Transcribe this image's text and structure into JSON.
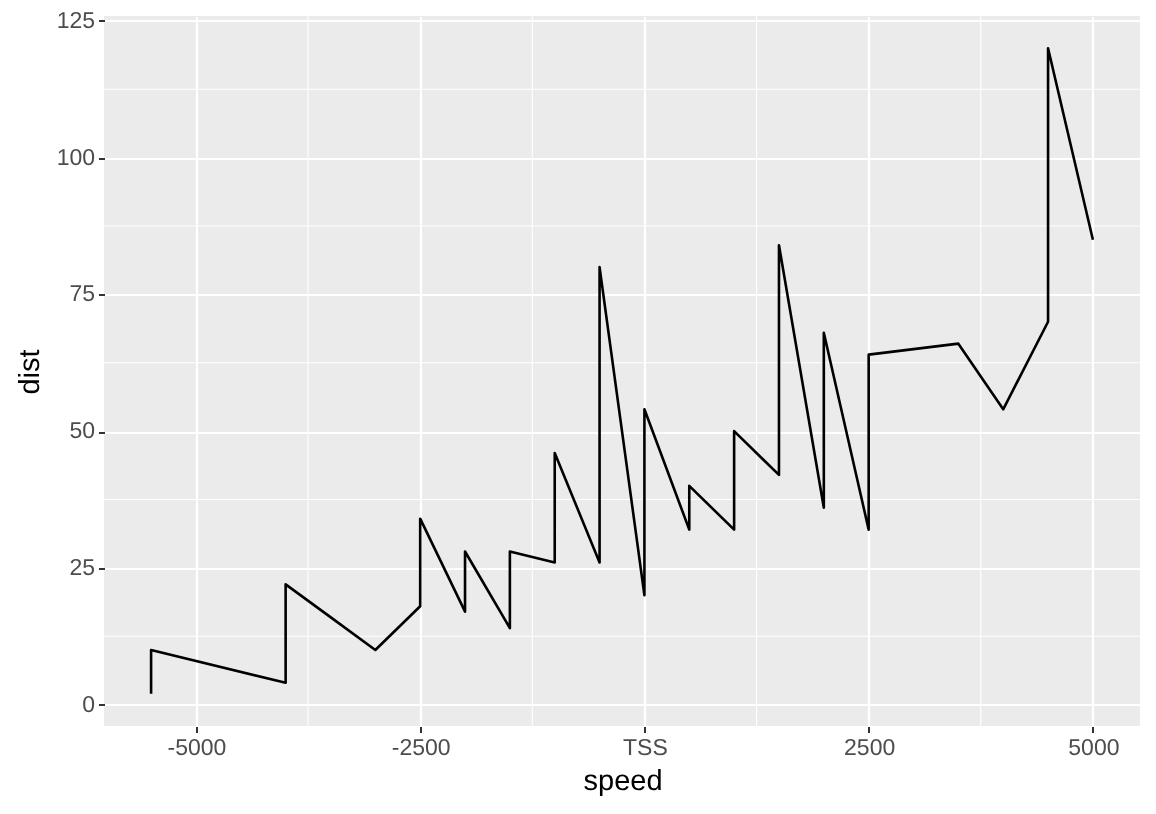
{
  "chart_data": {
    "type": "line",
    "xlabel": "speed",
    "ylabel": "dist",
    "x": [
      -5500,
      -5500,
      -4000,
      -4000,
      -3500,
      -3000,
      -2500,
      -2500,
      -2500,
      -2000,
      -2000,
      -1500,
      -1500,
      -1500,
      -1500,
      -1000,
      -1000,
      -1000,
      -1000,
      -500,
      -500,
      -500,
      -500,
      0,
      0,
      0,
      500,
      500,
      1000,
      1000,
      1000,
      1500,
      1500,
      1500,
      1500,
      2000,
      2000,
      2000,
      2500,
      2500,
      2500,
      2500,
      2500,
      3500,
      4000,
      4500,
      4500,
      4500,
      4500,
      5000
    ],
    "series": [
      {
        "color": "#000000",
        "values": [
          2,
          10,
          4,
          22,
          16,
          10,
          18,
          26,
          34,
          17,
          28,
          14,
          20,
          24,
          28,
          26,
          34,
          34,
          46,
          26,
          36,
          60,
          80,
          20,
          26,
          54,
          32,
          40,
          32,
          40,
          50,
          42,
          56,
          76,
          84,
          36,
          46,
          68,
          32,
          48,
          52,
          56,
          64,
          66,
          54,
          70,
          92,
          93,
          120,
          85
        ]
      }
    ],
    "xlim": [
      -6025,
      5525
    ],
    "ylim": [
      -3.9,
      125.9
    ],
    "xticks": [
      -5000,
      -2500,
      {
        "value": 0,
        "label": "TSS"
      },
      2500,
      5000
    ],
    "yticks": [
      0,
      25,
      50,
      75,
      100,
      125
    ],
    "grid": true,
    "marker": "none",
    "line_style": "solid"
  }
}
